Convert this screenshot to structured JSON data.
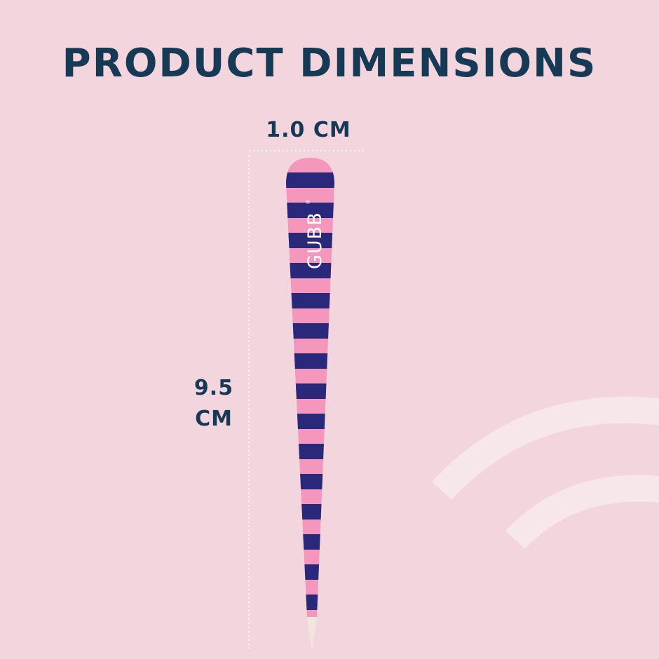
{
  "title": "PRODUCT DIMENSIONS",
  "width_label": "1.0 CM",
  "height_label": {
    "line1": "9.5",
    "line2": "CM"
  },
  "product": {
    "brand_logo": "GUBB",
    "pattern": "horizontal stripes"
  },
  "colors": {
    "background": "#f3d6dd",
    "text": "#163a56",
    "stripe_pink": "#f596bd",
    "stripe_navy": "#29287a",
    "tip": "#efe6df",
    "guide_dots": "#ffffff"
  }
}
